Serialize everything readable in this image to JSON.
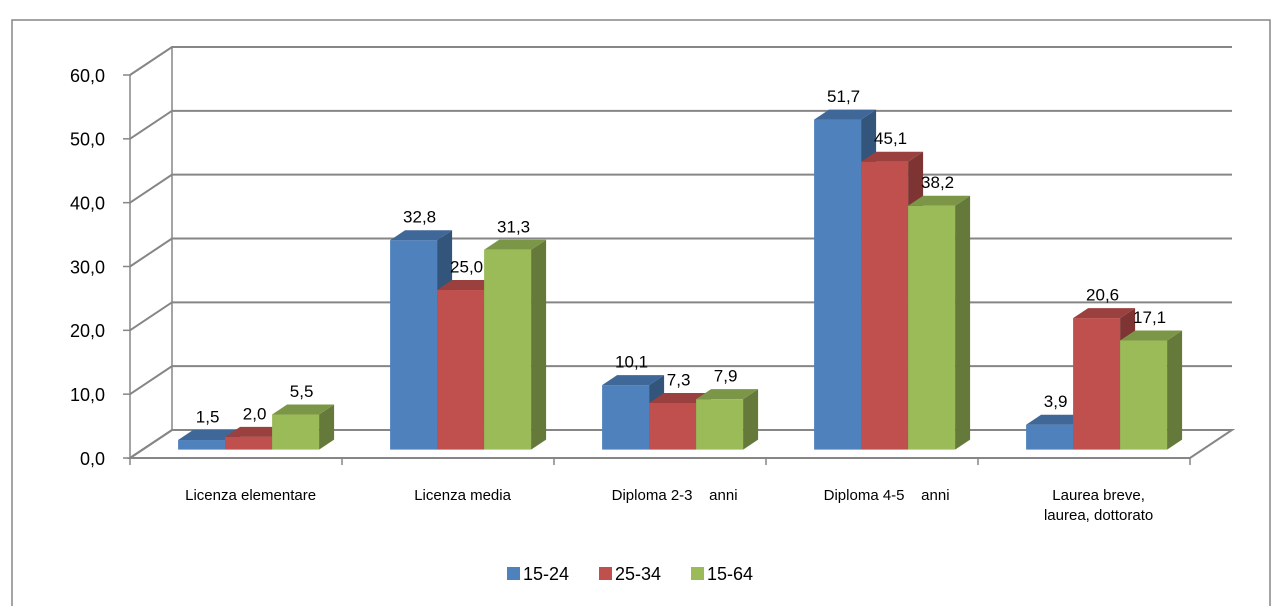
{
  "chart_data": {
    "type": "bar3d",
    "categories": [
      "Licenza elementare",
      "Licenza media",
      "Diploma 2-3    anni",
      "Diploma 4-5    anni",
      "Laurea breve,\nlaurea, dottorato"
    ],
    "series": [
      {
        "name": "15-24",
        "color": "#4f81bd",
        "values": [
          1.5,
          32.8,
          10.1,
          51.7,
          3.9
        ],
        "value_labels": [
          "1,5",
          "32,8",
          "10,1",
          "51,7",
          "3,9"
        ]
      },
      {
        "name": "25-34",
        "color": "#c0504d",
        "values": [
          2.0,
          25.0,
          7.3,
          45.1,
          20.6
        ],
        "value_labels": [
          "2,0",
          "25,0",
          "7,3",
          "45,1",
          "20,6"
        ]
      },
      {
        "name": "15-64",
        "color": "#9bbb59",
        "values": [
          5.5,
          31.3,
          7.9,
          38.2,
          17.1
        ],
        "value_labels": [
          "5,5",
          "31,3",
          "7,9",
          "38,2",
          "17,1"
        ]
      }
    ],
    "ylim": [
      0,
      60
    ],
    "yticks": [
      {
        "value": 0,
        "label": "0,0"
      },
      {
        "value": 10,
        "label": "10,0"
      },
      {
        "value": 20,
        "label": "20,0"
      },
      {
        "value": 30,
        "label": "30,0"
      },
      {
        "value": 40,
        "label": "40,0"
      },
      {
        "value": 50,
        "label": "50,0"
      },
      {
        "value": 60,
        "label": "60,0"
      }
    ],
    "grid": true,
    "legend": "bottom"
  }
}
